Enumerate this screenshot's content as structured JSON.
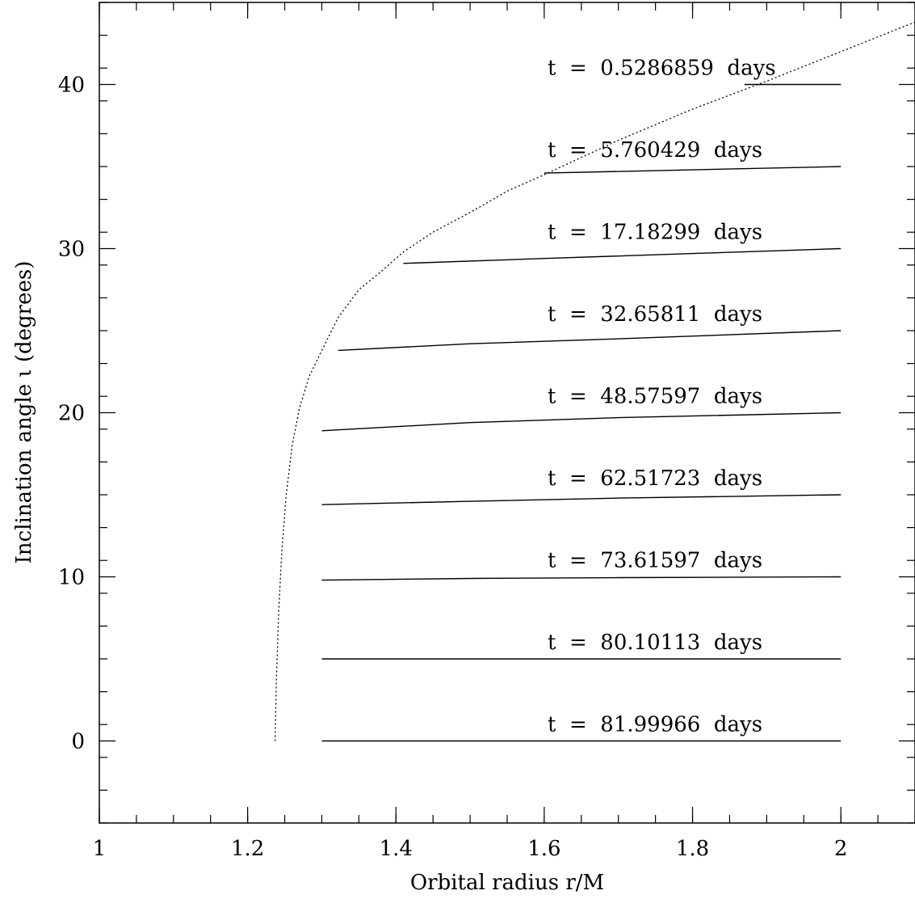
{
  "chart_data": {
    "type": "line",
    "title": "",
    "xlabel": "Orbital radius r/M",
    "ylabel": "Inclination angle ι  (degrees)",
    "xlim": [
      1,
      2.1
    ],
    "ylim": [
      -5,
      45
    ],
    "x_ticks": [
      {
        "value": 1,
        "label": "1"
      },
      {
        "value": 1.2,
        "label": "1.2"
      },
      {
        "value": 1.4,
        "label": "1.4"
      },
      {
        "value": 1.6,
        "label": "1.6"
      },
      {
        "value": 1.8,
        "label": "1.8"
      },
      {
        "value": 2,
        "label": "2"
      }
    ],
    "y_ticks": [
      {
        "value": 0,
        "label": "0"
      },
      {
        "value": 10,
        "label": "10"
      },
      {
        "value": 20,
        "label": "20"
      },
      {
        "value": 30,
        "label": "30"
      },
      {
        "value": 40,
        "label": "40"
      }
    ],
    "x_minor_step": 0.05,
    "y_minor_step": 2,
    "grid": false,
    "boundary_curve": {
      "style": "dotted",
      "x": [
        1.237,
        1.239,
        1.242,
        1.246,
        1.252,
        1.26,
        1.27,
        1.283,
        1.3,
        1.322,
        1.35,
        1.38,
        1.41,
        1.45,
        1.5,
        1.55,
        1.6,
        1.7,
        1.8,
        1.9,
        2.0,
        2.1
      ],
      "y": [
        0,
        4,
        8,
        11.5,
        15,
        18,
        20.3,
        22.2,
        23.8,
        25.8,
        27.5,
        28.6,
        29.8,
        31,
        32.2,
        33.5,
        34.5,
        36.6,
        38.5,
        40.2,
        42,
        43.8
      ]
    },
    "series": [
      {
        "label": "t  =  0.5286859  days",
        "x": [
          1.87,
          2.0
        ],
        "y": [
          40,
          40
        ]
      },
      {
        "label": "t  =  5.760429  days",
        "x": [
          1.6,
          2.0
        ],
        "y": [
          34.6,
          35
        ]
      },
      {
        "label": "t  =  17.18299  days",
        "x": [
          1.41,
          1.6,
          1.8,
          2.0
        ],
        "y": [
          29.1,
          29.4,
          29.7,
          30
        ]
      },
      {
        "label": "t  =  32.65811  days",
        "x": [
          1.322,
          1.5,
          1.7,
          2.0
        ],
        "y": [
          23.8,
          24.2,
          24.5,
          25
        ]
      },
      {
        "label": "t  =  48.57597  days",
        "x": [
          1.3,
          1.5,
          1.7,
          2.0
        ],
        "y": [
          18.9,
          19.4,
          19.7,
          20
        ]
      },
      {
        "label": "t  =  62.51723  days",
        "x": [
          1.3,
          1.5,
          1.7,
          2.0
        ],
        "y": [
          14.4,
          14.6,
          14.8,
          15
        ]
      },
      {
        "label": "t  =  73.61597  days",
        "x": [
          1.3,
          1.5,
          1.7,
          2.0
        ],
        "y": [
          9.8,
          9.9,
          9.95,
          10
        ]
      },
      {
        "label": "t  =  80.10113  days",
        "x": [
          1.3,
          2.0
        ],
        "y": [
          5,
          5
        ]
      },
      {
        "label": "t  =  81.99966  days",
        "x": [
          1.3,
          2.0
        ],
        "y": [
          0,
          0
        ]
      }
    ]
  }
}
